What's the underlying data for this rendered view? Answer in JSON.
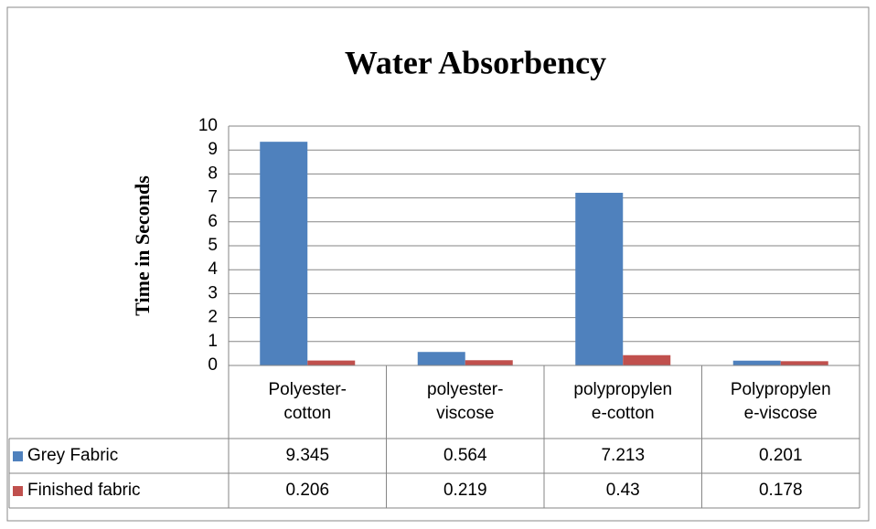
{
  "chart_data": {
    "type": "bar",
    "title": "Water Absorbency",
    "y_label": "Time in Seconds",
    "categories": [
      "Polyester-cotton",
      "polyester-viscose",
      "polypropylene-cotton",
      "Polypropylene-viscose"
    ],
    "series": [
      {
        "name": "Grey Fabric",
        "color": "#4f81bd",
        "values": [
          9.345,
          0.564,
          7.213,
          0.201
        ]
      },
      {
        "name": "Finished fabric",
        "color": "#c0504d",
        "values": [
          0.206,
          0.219,
          0.43,
          0.178
        ]
      }
    ],
    "ylim": [
      0,
      10
    ],
    "yticks": [
      0,
      1,
      2,
      3,
      4,
      5,
      6,
      7,
      8,
      9,
      10
    ],
    "grid": true,
    "data_table": true
  }
}
